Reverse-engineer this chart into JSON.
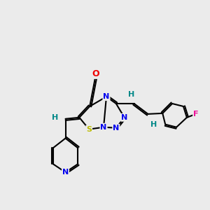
{
  "bg_color": "#ebebeb",
  "bond_color": "#000000",
  "bond_width": 1.5,
  "atom_colors": {
    "N": "#0000ee",
    "O": "#ee0000",
    "S": "#bbbb00",
    "F": "#ee1199",
    "H": "#008888"
  },
  "font_size": 8,
  "fig_width": 3.0,
  "fig_height": 3.0,
  "dpi": 100
}
